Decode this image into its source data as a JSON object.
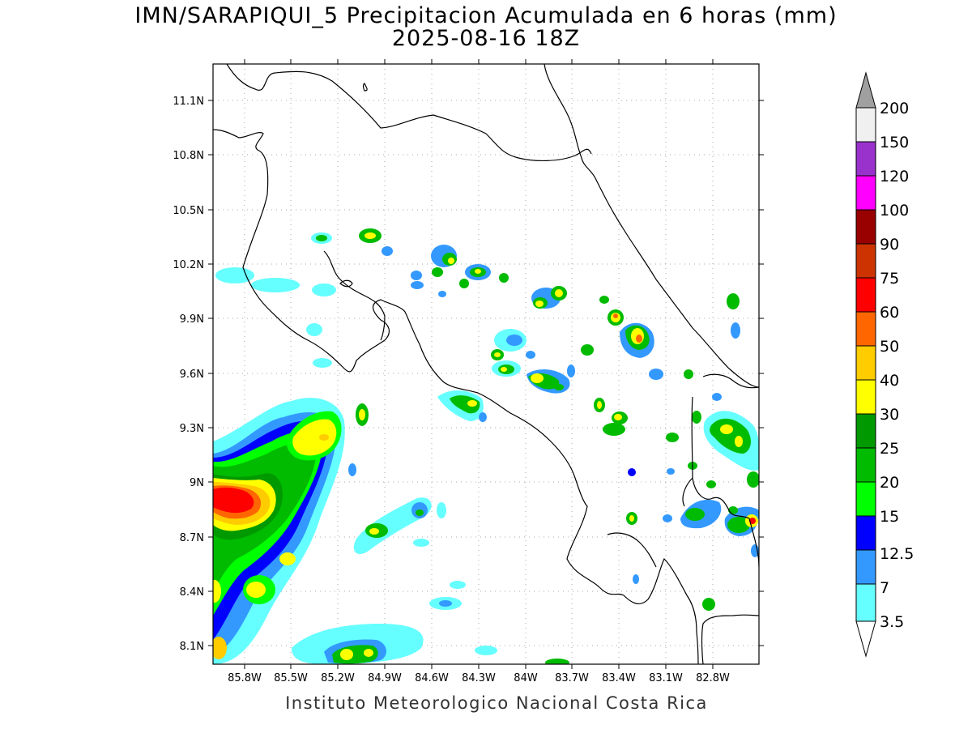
{
  "header": {
    "title": "IMN/SARAPIQUI_5 Precipitacion Acumulada en 6 horas (mm)",
    "subtitle": "2025-08-16 18Z"
  },
  "footer": {
    "credit": "Instituto Meteorologico Nacional Costa Rica"
  },
  "map": {
    "lon_range": [
      -86.05,
      -82.55
    ],
    "lat_range": [
      8.0,
      11.3
    ],
    "lat_ticks": [
      "11.1N",
      "10.8N",
      "10.5N",
      "10.2N",
      "9.9N",
      "9.6N",
      "9.3N",
      "9N",
      "8.7N",
      "8.4N",
      "8.1N"
    ],
    "lon_ticks": [
      "85.8W",
      "85.5W",
      "85.2W",
      "84.9W",
      "84.6W",
      "84.3W",
      "84W",
      "83.7W",
      "83.4W",
      "83.1W",
      "82.8W"
    ],
    "grid": true,
    "coastline_color": "#000000"
  },
  "colorbar": {
    "levels": [
      "200",
      "150",
      "120",
      "100",
      "90",
      "75",
      "60",
      "50",
      "40",
      "30",
      "25",
      "20",
      "15",
      "12.5",
      "7",
      "3.5"
    ],
    "colors": [
      "#f0f0f0",
      "#9932cc",
      "#ff00ff",
      "#990000",
      "#cc3300",
      "#ff0000",
      "#ff6600",
      "#ffcc00",
      "#ffff00",
      "#009900",
      "#00bb00",
      "#00ff00",
      "#0000ff",
      "#3399ff",
      "#66ffff"
    ],
    "over_color": "#a0a0a0"
  }
}
